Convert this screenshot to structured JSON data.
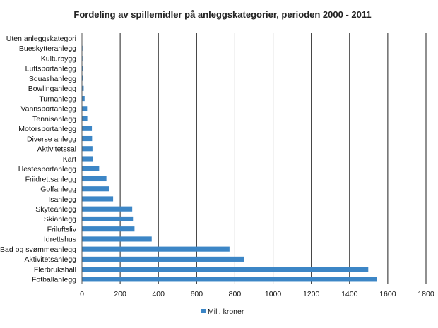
{
  "chart_data": {
    "type": "bar",
    "orientation": "horizontal",
    "title": "Fordeling av spillemidler på anleggskategorier, perioden 2000 - 2011",
    "categories": [
      "Uten anleggskategori",
      "Bueskytteranlegg",
      "Kulturbygg",
      "Luftsportanlegg",
      "Squashanlegg",
      "Bowlinganlegg",
      "Turnanlegg",
      "Vannsportanlegg",
      "Tennisanlegg",
      "Motorsportanlegg",
      "Diverse anlegg",
      "Aktivitetssal",
      "Kart",
      "Hestesportanlegg",
      "Friidrettsanlegg",
      "Golfanlegg",
      "Isanlegg",
      "Skyteanlegg",
      "Skianlegg",
      "Friluftsliv",
      "Idrettshus",
      "Bad og svømmeanlegg",
      "Aktivitetsanlegg",
      "Flerbrukshall",
      "Fotballanlegg"
    ],
    "series": [
      {
        "name": "Mill. kroner",
        "color": "#3c86c6",
        "values": [
          1,
          3,
          3,
          4,
          5,
          9,
          14,
          27,
          28,
          52,
          53,
          55,
          56,
          90,
          128,
          143,
          163,
          263,
          267,
          275,
          365,
          772,
          848,
          1498,
          1542
        ]
      }
    ],
    "xlim": [
      0,
      1800
    ],
    "xticks": [
      0,
      200,
      400,
      600,
      800,
      1000,
      1200,
      1400,
      1600,
      1800
    ],
    "grid": "vertical",
    "legend": "bottom"
  }
}
